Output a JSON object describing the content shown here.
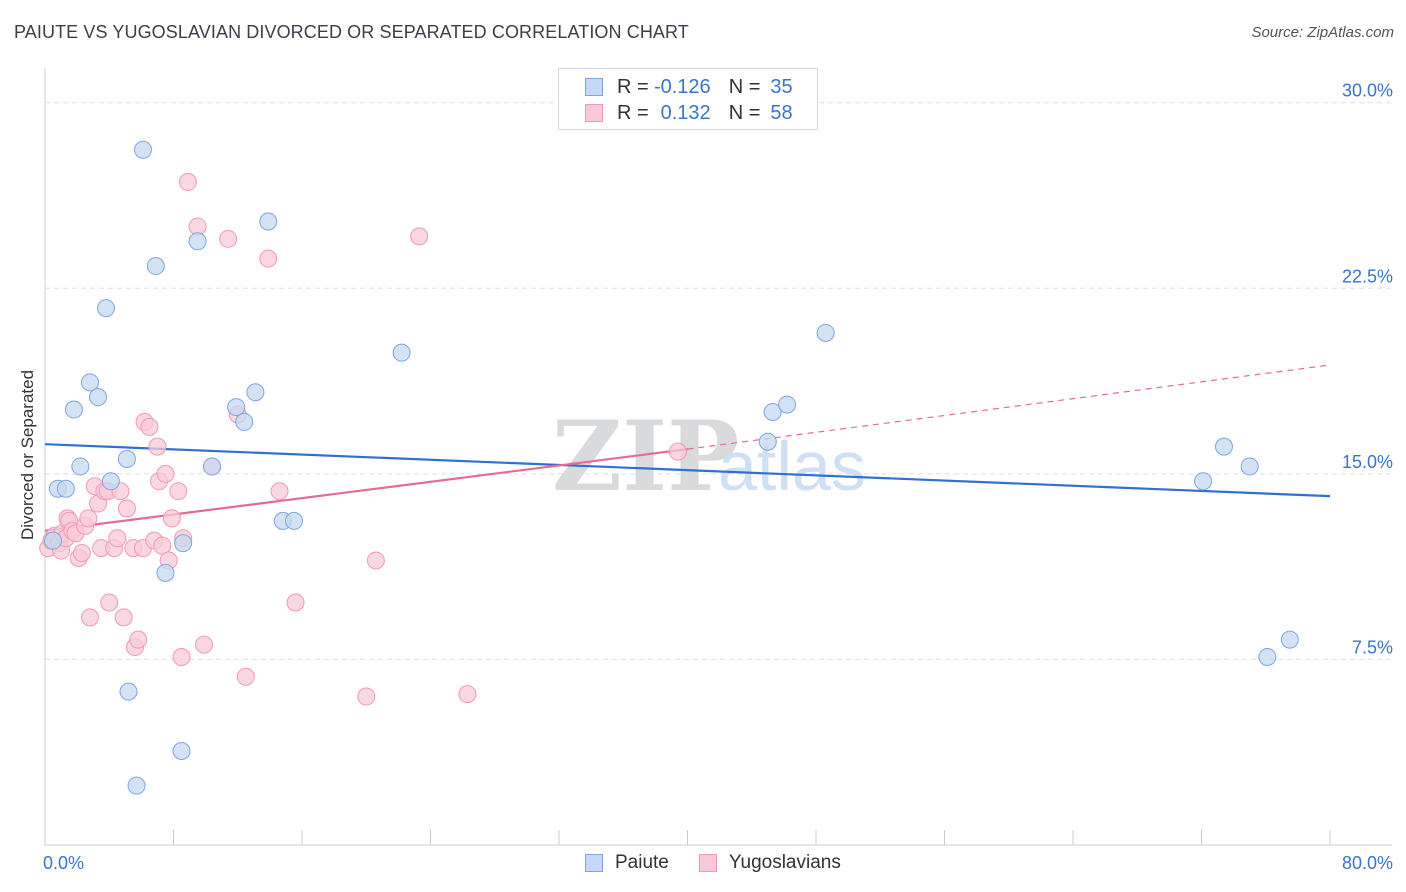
{
  "title": "PAIUTE VS YUGOSLAVIAN DIVORCED OR SEPARATED CORRELATION CHART",
  "source": "Source: ZipAtlas.com",
  "watermark": {
    "part1": "ZIP",
    "part2": "atlas"
  },
  "legend_stats": [
    {
      "r_label": "R =",
      "r_value": "-0.126",
      "n_label": "N =",
      "n_value": "35"
    },
    {
      "r_label": "R =",
      "r_value": "0.132",
      "n_label": "N =",
      "n_value": "58"
    }
  ],
  "colors": {
    "paiute_fill": "#c5d8f3",
    "paiute_stroke": "#7ea6dd",
    "paiute_line": "#3070d0",
    "yugo_fill": "#f9c9d8",
    "yugo_stroke": "#ef9ab5",
    "yugo_line": "#e46b97",
    "axis_text": "#3a74cc",
    "grid": "#dcdfe4"
  },
  "chart_data": {
    "type": "scatter",
    "title": "PAIUTE VS YUGOSLAVIAN DIVORCED OR SEPARATED CORRELATION CHART",
    "xlabel": "",
    "ylabel": "Divorced or Separated",
    "xlim": [
      0,
      80
    ],
    "ylim": [
      0,
      31
    ],
    "x_tick_labels": [
      "0.0%",
      "80.0%"
    ],
    "y_ticks": [
      7.5,
      15.0,
      22.5,
      30.0
    ],
    "y_tick_labels": [
      "7.5%",
      "15.0%",
      "22.5%",
      "30.0%"
    ],
    "legend_position": "bottom-center",
    "series": [
      {
        "name": "Paiute",
        "r": -0.126,
        "n": 35,
        "trend": {
          "x": [
            0,
            80
          ],
          "y": [
            16.2,
            14.1
          ],
          "style": "solid"
        },
        "points": [
          [
            0.5,
            12.3
          ],
          [
            0.8,
            14.4
          ],
          [
            1.3,
            14.4
          ],
          [
            1.8,
            17.6
          ],
          [
            2.2,
            15.3
          ],
          [
            2.8,
            18.7
          ],
          [
            3.3,
            18.1
          ],
          [
            3.8,
            21.7
          ],
          [
            4.1,
            14.7
          ],
          [
            5.1,
            15.6
          ],
          [
            5.2,
            6.2
          ],
          [
            5.7,
            2.4
          ],
          [
            6.1,
            28.1
          ],
          [
            6.9,
            23.4
          ],
          [
            7.5,
            11.0
          ],
          [
            8.5,
            3.8
          ],
          [
            8.6,
            12.2
          ],
          [
            9.5,
            24.4
          ],
          [
            10.4,
            15.3
          ],
          [
            11.9,
            17.7
          ],
          [
            12.4,
            17.1
          ],
          [
            13.1,
            18.3
          ],
          [
            13.9,
            25.2
          ],
          [
            14.8,
            13.1
          ],
          [
            15.5,
            13.1
          ],
          [
            22.2,
            19.9
          ],
          [
            45.0,
            16.3
          ],
          [
            45.3,
            17.5
          ],
          [
            46.2,
            17.8
          ],
          [
            48.6,
            20.7
          ],
          [
            72.1,
            14.7
          ],
          [
            73.4,
            16.1
          ],
          [
            75.0,
            15.3
          ],
          [
            76.1,
            7.6
          ],
          [
            77.5,
            8.3
          ]
        ]
      },
      {
        "name": "Yugoslavians",
        "r": 0.132,
        "n": 58,
        "trend": {
          "x": [
            0,
            40
          ],
          "y": [
            12.7,
            16.0
          ],
          "style": "solid",
          "extended_x": [
            40,
            80
          ],
          "extended_y": [
            16.0,
            19.4
          ],
          "extended_style": "dashed"
        },
        "points": [
          [
            0.2,
            12.0
          ],
          [
            0.4,
            12.3
          ],
          [
            0.6,
            12.5
          ],
          [
            0.9,
            12.2
          ],
          [
            1.0,
            11.9
          ],
          [
            1.1,
            12.6
          ],
          [
            1.3,
            12.4
          ],
          [
            1.4,
            13.2
          ],
          [
            1.5,
            13.1
          ],
          [
            1.7,
            12.7
          ],
          [
            1.9,
            12.6
          ],
          [
            2.1,
            11.6
          ],
          [
            2.3,
            11.8
          ],
          [
            2.5,
            12.9
          ],
          [
            2.7,
            13.2
          ],
          [
            2.8,
            9.2
          ],
          [
            3.1,
            14.5
          ],
          [
            3.3,
            13.8
          ],
          [
            3.5,
            12.0
          ],
          [
            3.7,
            14.3
          ],
          [
            3.9,
            14.3
          ],
          [
            4.0,
            9.8
          ],
          [
            4.3,
            12.0
          ],
          [
            4.5,
            12.4
          ],
          [
            4.7,
            14.3
          ],
          [
            4.9,
            9.2
          ],
          [
            5.1,
            13.6
          ],
          [
            5.5,
            12.0
          ],
          [
            5.6,
            8.0
          ],
          [
            5.8,
            8.3
          ],
          [
            6.1,
            12.0
          ],
          [
            6.2,
            17.1
          ],
          [
            6.5,
            16.9
          ],
          [
            6.8,
            12.3
          ],
          [
            7.0,
            16.1
          ],
          [
            7.1,
            14.7
          ],
          [
            7.3,
            12.1
          ],
          [
            7.5,
            15.0
          ],
          [
            7.7,
            11.5
          ],
          [
            7.9,
            13.2
          ],
          [
            8.3,
            14.3
          ],
          [
            8.5,
            7.6
          ],
          [
            8.6,
            12.4
          ],
          [
            8.9,
            26.8
          ],
          [
            9.5,
            25.0
          ],
          [
            9.9,
            8.1
          ],
          [
            10.4,
            15.3
          ],
          [
            11.4,
            24.5
          ],
          [
            12.0,
            17.4
          ],
          [
            12.5,
            6.8
          ],
          [
            13.9,
            23.7
          ],
          [
            14.6,
            14.3
          ],
          [
            15.6,
            9.8
          ],
          [
            20.0,
            6.0
          ],
          [
            20.6,
            11.5
          ],
          [
            23.3,
            24.6
          ],
          [
            26.3,
            6.1
          ],
          [
            39.4,
            15.9
          ]
        ]
      }
    ]
  },
  "bottom_legend": [
    {
      "label": "Paiute"
    },
    {
      "label": "Yugoslavians"
    }
  ]
}
